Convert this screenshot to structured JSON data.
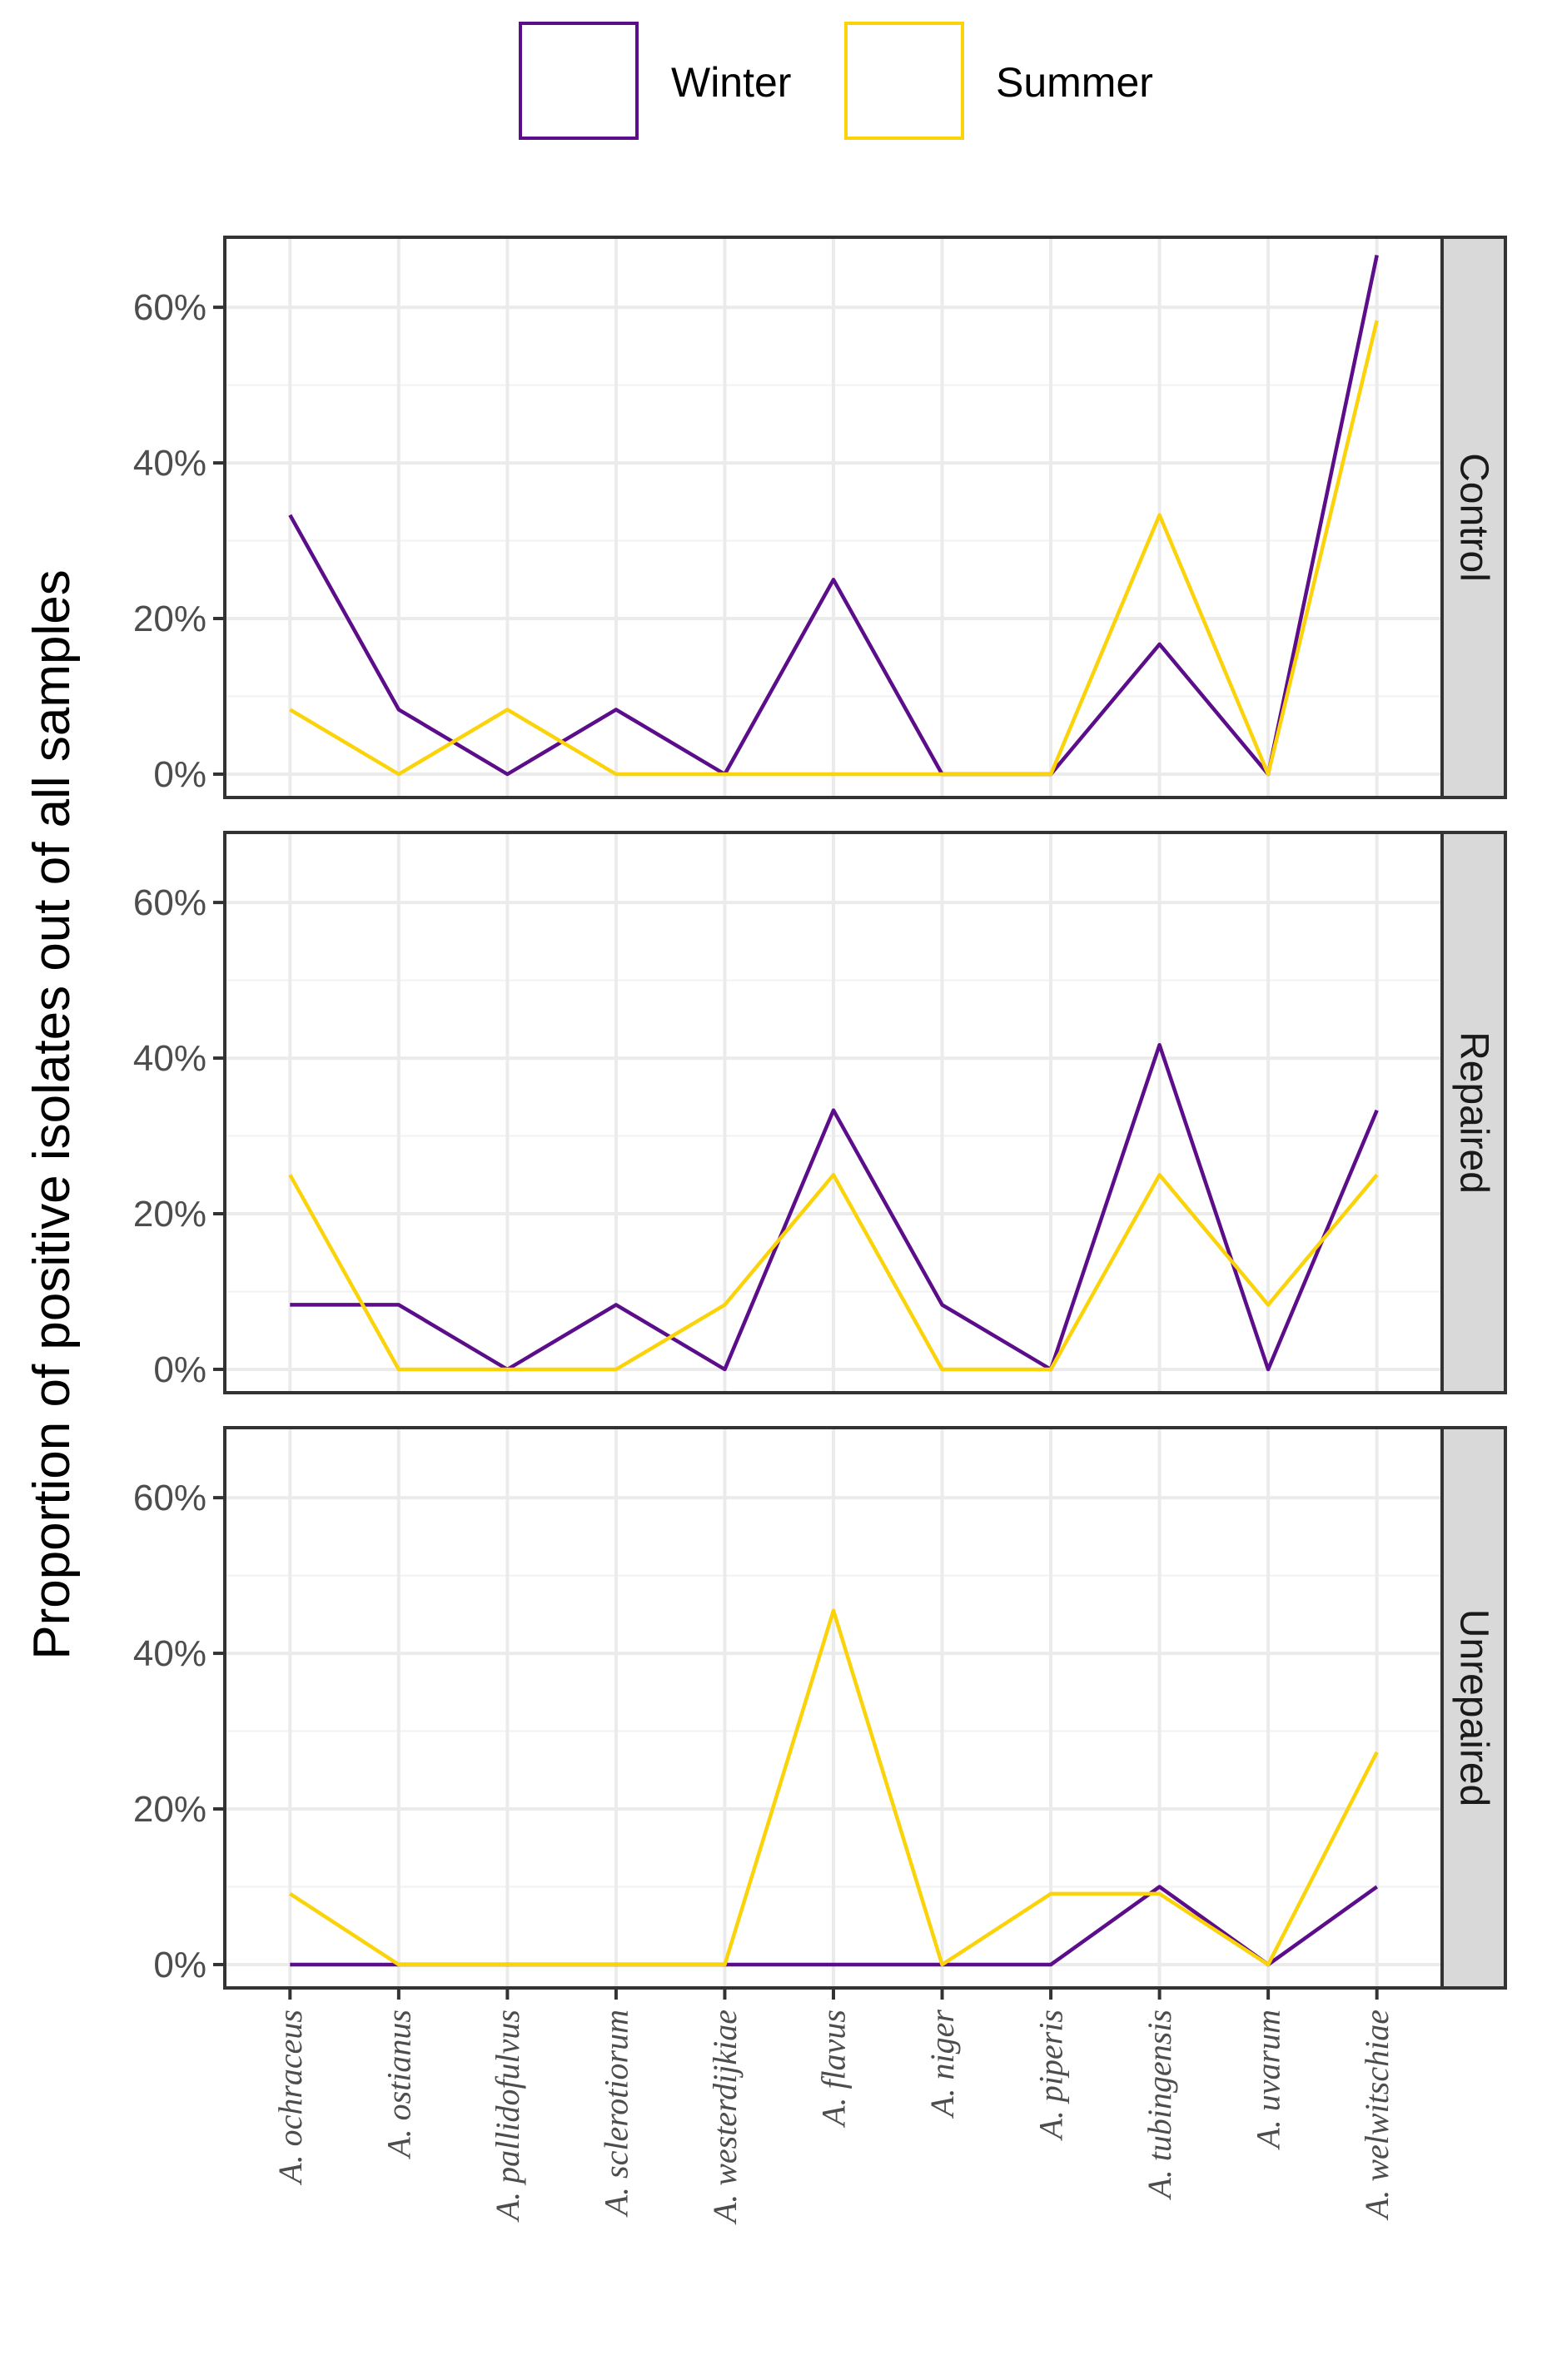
{
  "chart_data": {
    "type": "line",
    "ylabel": "Proportion of positive isolates out of all samples",
    "xlabel": "",
    "ylim": [
      -3,
      69
    ],
    "yticks": [
      0,
      20,
      40,
      60
    ],
    "ytick_labels": [
      "0%",
      "20%",
      "40%",
      "60%"
    ],
    "grid": true,
    "legend_position": "top",
    "categories": [
      "A. ochraceus",
      "A. ostianus",
      "A. pallidofulvus",
      "A. sclerotiorum",
      "A. westerdijkiae",
      "A. flavus",
      "A. niger",
      "A. piperis",
      "A. tubingensis",
      "A. uvarum",
      "A. welwitschiae"
    ],
    "legend": [
      {
        "name": "Winter",
        "color": "#5b0d8a"
      },
      {
        "name": "Summer",
        "color": "#fbd30a"
      }
    ],
    "facets": [
      {
        "label": "Control",
        "series": [
          {
            "name": "Winter",
            "values": [
              33.3,
              8.3,
              0,
              8.3,
              0,
              25,
              0,
              0,
              16.7,
              0,
              66.7
            ]
          },
          {
            "name": "Summer",
            "values": [
              8.3,
              0,
              8.3,
              0,
              0,
              0,
              0,
              0,
              33.3,
              0,
              58.3
            ]
          }
        ]
      },
      {
        "label": "Repaired",
        "series": [
          {
            "name": "Winter",
            "values": [
              8.3,
              8.3,
              0,
              8.3,
              0,
              33.3,
              8.3,
              0,
              41.7,
              0,
              33.3
            ]
          },
          {
            "name": "Summer",
            "values": [
              25,
              0,
              0,
              0,
              8.3,
              25,
              0,
              0,
              25,
              8.3,
              25
            ]
          }
        ]
      },
      {
        "label": "Unrepaired",
        "series": [
          {
            "name": "Winter",
            "values": [
              0,
              0,
              0,
              0,
              0,
              0,
              0,
              0,
              10,
              0,
              10
            ]
          },
          {
            "name": "Summer",
            "values": [
              9.1,
              0,
              0,
              0,
              0,
              45.5,
              0,
              9.1,
              9.1,
              0,
              27.3
            ]
          }
        ]
      }
    ]
  }
}
